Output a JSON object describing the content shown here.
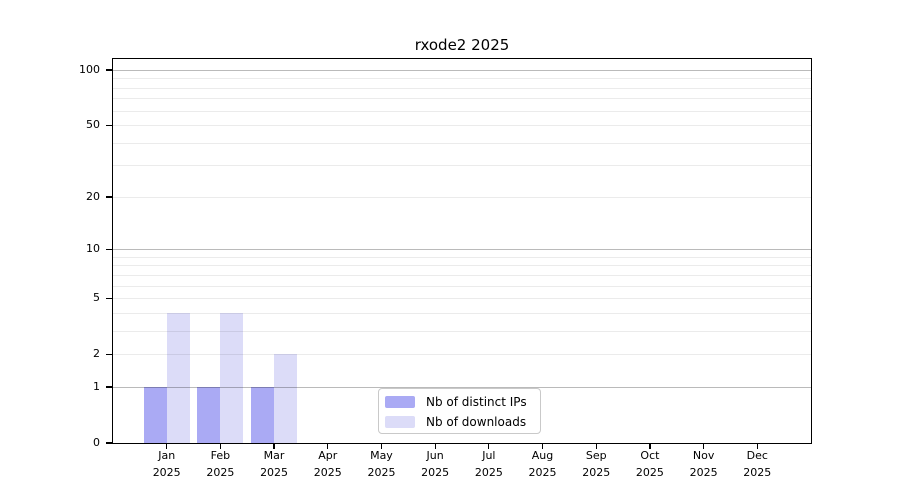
{
  "chart": {
    "months": [
      "Jan",
      "Feb",
      "Mar",
      "Apr",
      "May",
      "Jun",
      "Jul",
      "Aug",
      "Sep",
      "Oct",
      "Nov",
      "Dec"
    ],
    "year": "2025",
    "yticks": [
      0,
      1,
      2,
      5,
      10,
      20,
      50,
      100
    ],
    "grid_major": [
      1,
      10,
      100
    ],
    "grid_minor": [
      2,
      3,
      4,
      5,
      6,
      7,
      8,
      9,
      20,
      30,
      40,
      50,
      60,
      70,
      80,
      90
    ]
  },
  "chart_data": {
    "type": "bar",
    "title": "rxode2 2025",
    "categories": [
      "Jan 2025",
      "Feb 2025",
      "Mar 2025",
      "Apr 2025",
      "May 2025",
      "Jun 2025",
      "Jul 2025",
      "Aug 2025",
      "Sep 2025",
      "Oct 2025",
      "Nov 2025",
      "Dec 2025"
    ],
    "series": [
      {
        "name": "Nb of distinct IPs",
        "color": "#aaaaf4",
        "values": [
          1,
          1,
          1,
          0,
          0,
          0,
          0,
          0,
          0,
          0,
          0,
          0
        ]
      },
      {
        "name": "Nb of downloads",
        "color": "#dcdcf8",
        "values": [
          4,
          4,
          2,
          0,
          0,
          0,
          0,
          0,
          0,
          0,
          0,
          0
        ]
      }
    ],
    "xlabel": "",
    "ylabel": "",
    "yscale": "log1p",
    "ylim": [
      0,
      115
    ],
    "yticks": [
      0,
      1,
      2,
      5,
      10,
      20,
      50,
      100
    ],
    "grid": true,
    "legend_position": "lower center"
  }
}
